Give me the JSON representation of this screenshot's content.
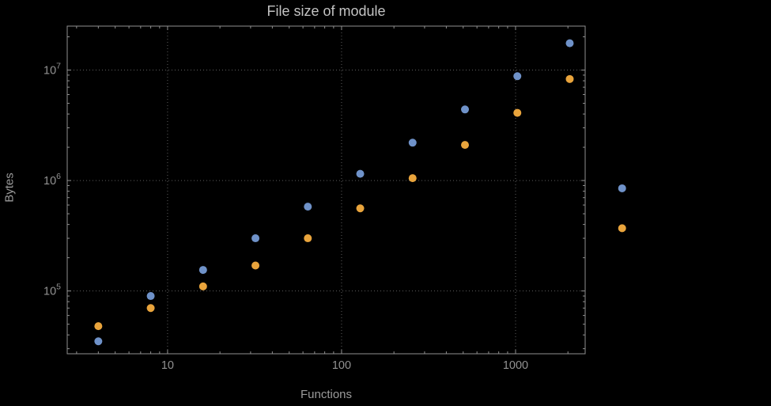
{
  "chart_data": {
    "type": "scatter",
    "title": "File size of module",
    "xlabel": "Functions",
    "ylabel": "Bytes",
    "x_scale": "log",
    "y_scale": "log",
    "grid": true,
    "legend": "none",
    "xlim": [
      2.65,
      2512
    ],
    "ylim": [
      27000,
      25000000
    ],
    "x_ticks": [
      {
        "value": 10,
        "label": "10"
      },
      {
        "value": 100,
        "label": "100"
      },
      {
        "value": 1000,
        "label": "1000"
      }
    ],
    "y_ticks": [
      {
        "value": 100000,
        "base": "10",
        "exp": "5"
      },
      {
        "value": 1000000,
        "base": "10",
        "exp": "6"
      },
      {
        "value": 10000000,
        "base": "10",
        "exp": "7"
      }
    ],
    "x": [
      4,
      8,
      16,
      32,
      64,
      128,
      256,
      512,
      1024,
      2048,
      4096
    ],
    "series": [
      {
        "name": "series-1",
        "color": "#6f92c9",
        "values": [
          35000,
          90000,
          155000,
          300000,
          580000,
          1150000,
          2200000,
          4400000,
          8800000,
          17500000,
          850000
        ]
      },
      {
        "name": "series-2",
        "color": "#e9a43c",
        "values": [
          48000,
          70000,
          110000,
          170000,
          300000,
          560000,
          1050000,
          2100000,
          4100000,
          8300000,
          370000
        ]
      }
    ],
    "colors": {
      "background": "#000000",
      "frame": "#8f8f8f",
      "grid": "#5e5e5e",
      "ticks": "#8f8f8f",
      "title": "#c3c3c3",
      "axis_labels": "#9b9b9b",
      "tick_labels": "#929292"
    }
  }
}
